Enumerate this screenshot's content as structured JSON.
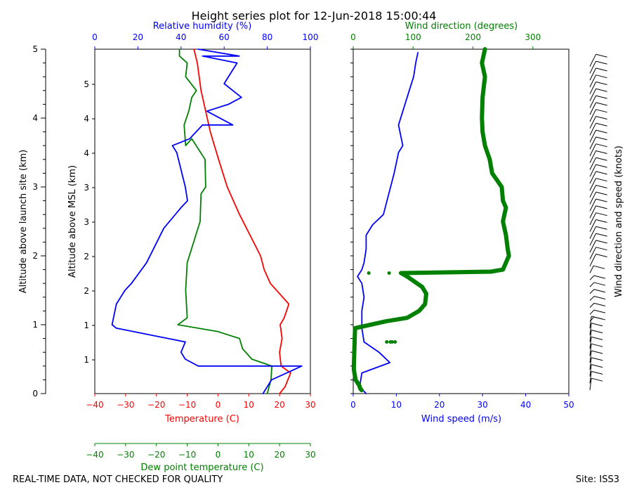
{
  "chart_data": [
    {
      "type": "line",
      "title": "Height series plot for 12-Jun-2018 15:00:44",
      "ylabel_left": "Altitude above launch site (km)",
      "ylabel_inner": "Altitude above MSL (km)",
      "ylim_msl_km": [
        0,
        5.0
      ],
      "y_ticks_launch": [
        "0",
        "1",
        "2",
        "3",
        "4",
        "5"
      ],
      "y_ticks_msl": [
        "1",
        "1",
        "2",
        "2",
        "3",
        "3",
        "4",
        "4",
        "5"
      ],
      "axes": {
        "temperature": {
          "label": "Temperature (C)",
          "range": [
            -40,
            30
          ],
          "ticks": [
            -40,
            -30,
            -20,
            -10,
            0,
            10,
            20,
            30
          ],
          "color": "#ff0000"
        },
        "dewpoint": {
          "label": "Dew point temperature (C)",
          "range": [
            -40,
            30
          ],
          "ticks": [
            -40,
            -30,
            -20,
            -10,
            0,
            10,
            20,
            30
          ],
          "color": "#008000"
        },
        "humidity": {
          "label": "Relative humidity (%)",
          "range": [
            0,
            100
          ],
          "ticks": [
            0,
            20,
            40,
            60,
            80,
            100
          ],
          "color": "#0000ff"
        },
        "wind_speed": {
          "label": "Wind speed (m/s)",
          "range": [
            0,
            50
          ],
          "ticks": [
            0,
            10,
            20,
            30,
            40,
            50
          ],
          "color": "#0000ff"
        },
        "wind_direction": {
          "label": "Wind direction (degrees)",
          "range": [
            0,
            360
          ],
          "ticks": [
            0,
            100,
            200,
            300
          ],
          "color": "#008000"
        },
        "barbs": {
          "label": "Wind direction and speed (knots)"
        }
      },
      "series": [
        {
          "name": "Temperature",
          "axis": "temperature",
          "color": "#ff0000",
          "points": [
            [
              20.0,
              0.0
            ],
            [
              21.8,
              0.1
            ],
            [
              23.6,
              0.3
            ],
            [
              20.5,
              0.4
            ],
            [
              20.0,
              0.6
            ],
            [
              20.8,
              0.8
            ],
            [
              20.2,
              1.0
            ],
            [
              21.5,
              1.1
            ],
            [
              23.0,
              1.3
            ],
            [
              17.0,
              1.6
            ],
            [
              15.0,
              1.8
            ],
            [
              13.8,
              2.0
            ],
            [
              7.0,
              2.6
            ],
            [
              3.0,
              3.0
            ],
            [
              0.2,
              3.4
            ],
            [
              -2.5,
              3.8
            ],
            [
              -4.0,
              4.1
            ],
            [
              -5.5,
              4.4
            ],
            [
              -6.7,
              4.8
            ],
            [
              -7.8,
              5.0
            ]
          ]
        },
        {
          "name": "Dew point",
          "axis": "dewpoint",
          "color": "#008000",
          "points": [
            [
              16.0,
              0.0
            ],
            [
              17.2,
              0.2
            ],
            [
              17.5,
              0.4
            ],
            [
              17.5,
              0.4
            ],
            [
              11.0,
              0.5
            ],
            [
              8.0,
              0.65
            ],
            [
              7.0,
              0.8
            ],
            [
              0.0,
              0.9
            ],
            [
              -13.0,
              1.0
            ],
            [
              -10.0,
              1.1
            ],
            [
              -10.5,
              1.5
            ],
            [
              -10.0,
              1.9
            ],
            [
              -5.8,
              2.5
            ],
            [
              -5.5,
              2.9
            ],
            [
              -4.0,
              3.0
            ],
            [
              -4.2,
              3.4
            ],
            [
              -8.5,
              3.7
            ],
            [
              -10.5,
              3.6
            ],
            [
              -11.0,
              3.9
            ],
            [
              -9.5,
              4.1
            ],
            [
              -8.5,
              4.3
            ],
            [
              -7.0,
              4.4
            ],
            [
              -10.5,
              4.6
            ],
            [
              -10.0,
              4.8
            ],
            [
              -12.5,
              4.9
            ],
            [
              -12.5,
              5.0
            ]
          ]
        },
        {
          "name": "Relative humidity",
          "axis": "humidity",
          "color": "#0000ff",
          "points": [
            [
              78,
              0.0
            ],
            [
              82,
              0.2
            ],
            [
              96,
              0.4
            ],
            [
              48,
              0.4
            ],
            [
              42,
              0.5
            ],
            [
              40,
              0.6
            ],
            [
              42,
              0.75
            ],
            [
              34,
              0.8
            ],
            [
              10,
              0.95
            ],
            [
              8,
              1.0
            ],
            [
              10,
              1.3
            ],
            [
              14,
              1.5
            ],
            [
              17,
              1.6
            ],
            [
              24,
              1.9
            ],
            [
              32,
              2.4
            ],
            [
              40,
              2.7
            ],
            [
              43,
              2.8
            ],
            [
              42,
              3.0
            ],
            [
              38,
              3.5
            ],
            [
              36,
              3.6
            ],
            [
              44,
              3.7
            ],
            [
              50,
              3.9
            ],
            [
              64,
              3.9
            ],
            [
              52,
              4.1
            ],
            [
              62,
              4.2
            ],
            [
              68,
              4.3
            ],
            [
              60,
              4.5
            ],
            [
              66,
              4.8
            ],
            [
              50,
              4.9
            ],
            [
              67,
              4.9
            ],
            [
              48,
              5.0
            ]
          ]
        },
        {
          "name": "Wind speed",
          "axis": "wind_speed",
          "color": "#0000ff",
          "points": [
            [
              3.0,
              0.0
            ],
            [
              1.5,
              0.1
            ],
            [
              2.0,
              0.3
            ],
            [
              8.5,
              0.45
            ],
            [
              6.0,
              0.6
            ],
            [
              2.5,
              0.75
            ],
            [
              2.0,
              0.95
            ],
            [
              2.0,
              1.2
            ],
            [
              2.5,
              1.4
            ],
            [
              2.0,
              1.6
            ],
            [
              1.0,
              1.7
            ],
            [
              2.0,
              1.8
            ],
            [
              2.5,
              1.9
            ],
            [
              3.0,
              2.1
            ],
            [
              3.0,
              2.3
            ],
            [
              4.5,
              2.45
            ],
            [
              7.0,
              2.6
            ],
            [
              9.5,
              3.2
            ],
            [
              10.5,
              3.5
            ],
            [
              11.5,
              3.6
            ],
            [
              10.5,
              3.9
            ],
            [
              12.0,
              4.2
            ],
            [
              13.0,
              4.4
            ],
            [
              14.0,
              4.6
            ],
            [
              14.5,
              4.8
            ],
            [
              15.0,
              4.95
            ]
          ]
        },
        {
          "name": "Wind direction",
          "axis": "wind_direction",
          "color": "#008000",
          "points": [
            [
              14.0,
              0.05
            ],
            [
              12.0,
              0.07
            ],
            [
              10.0,
              0.12
            ],
            [
              4.0,
              0.2
            ],
            [
              1.0,
              0.35
            ],
            [
              1.0,
              0.4
            ],
            [
              3.0,
              0.95
            ],
            [
              55.0,
              1.05
            ],
            [
              90.0,
              1.1
            ],
            [
              110.0,
              1.2
            ],
            [
              120.0,
              1.3
            ],
            [
              122.0,
              1.45
            ],
            [
              115.0,
              1.55
            ],
            [
              90.0,
              1.7
            ],
            [
              80.0,
              1.75
            ],
            [
              230.0,
              1.77
            ],
            [
              250.0,
              1.8
            ],
            [
              260.0,
              2.0
            ],
            [
              258.0,
              2.1
            ],
            [
              255.0,
              2.3
            ],
            [
              250.0,
              2.5
            ],
            [
              255.0,
              2.7
            ],
            [
              250.0,
              2.8
            ],
            [
              248.0,
              3.0
            ],
            [
              240.0,
              3.1
            ],
            [
              232.0,
              3.2
            ],
            [
              228.0,
              3.4
            ],
            [
              220.0,
              3.6
            ],
            [
              216.0,
              3.8
            ],
            [
              215.0,
              4.0
            ],
            [
              216.0,
              4.3
            ],
            [
              220.0,
              4.6
            ],
            [
              215.0,
              4.8
            ],
            [
              220.0,
              5.0
            ]
          ]
        },
        {
          "name": "Wind direction (scattered)",
          "axis": "wind_direction",
          "color": "#008000",
          "points": [
            [
              56.0,
              0.75
            ],
            [
              62.0,
              0.75
            ],
            [
              65.0,
              0.75
            ],
            [
              70.0,
              0.75
            ],
            [
              26.0,
              1.75
            ],
            [
              60.0,
              1.75
            ],
            [
              79.0,
              1.75
            ]
          ]
        }
      ]
    }
  ],
  "footer": {
    "left": "REAL-TIME DATA, NOT CHECKED FOR QUALITY",
    "right": "Site: ISS3"
  }
}
